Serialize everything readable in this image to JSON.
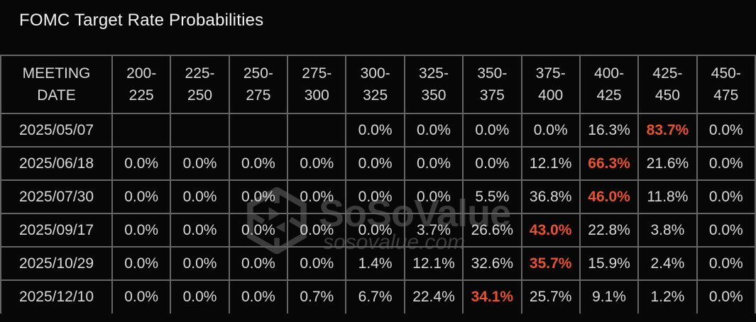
{
  "title": "FOMC Target Rate Probabilities",
  "colors": {
    "background": "#070707",
    "text": "#d9d9d9",
    "title": "#f2f2f2",
    "border": "#646464",
    "highlight": "#e8522f",
    "watermark": "#3b3b3b"
  },
  "watermark": {
    "brand": "SoSoValue",
    "site": "sosovalue.com",
    "logo": "sosovalue-cube-logo"
  },
  "table": {
    "date_header": "MEETING\nDATE",
    "rate_headers": [
      "200-\n225",
      "225-\n250",
      "250-\n275",
      "275-\n300",
      "300-\n325",
      "325-\n350",
      "350-\n375",
      "375-\n400",
      "400-\n425",
      "425-\n450",
      "450-\n475"
    ],
    "rows": [
      {
        "date": "2025/05/07",
        "values": [
          "",
          "",
          "",
          "",
          "0.0%",
          "0.0%",
          "0.0%",
          "0.0%",
          "16.3%",
          "83.7%",
          "0.0%"
        ],
        "highlight_col": 9
      },
      {
        "date": "2025/06/18",
        "values": [
          "0.0%",
          "0.0%",
          "0.0%",
          "0.0%",
          "0.0%",
          "0.0%",
          "0.0%",
          "12.1%",
          "66.3%",
          "21.6%",
          "0.0%"
        ],
        "highlight_col": 8
      },
      {
        "date": "2025/07/30",
        "values": [
          "0.0%",
          "0.0%",
          "0.0%",
          "0.0%",
          "0.0%",
          "0.0%",
          "5.5%",
          "36.8%",
          "46.0%",
          "11.8%",
          "0.0%"
        ],
        "highlight_col": 8
      },
      {
        "date": "2025/09/17",
        "values": [
          "0.0%",
          "0.0%",
          "0.0%",
          "0.0%",
          "0.0%",
          "3.7%",
          "26.6%",
          "43.0%",
          "22.8%",
          "3.8%",
          "0.0%"
        ],
        "highlight_col": 7
      },
      {
        "date": "2025/10/29",
        "values": [
          "0.0%",
          "0.0%",
          "0.0%",
          "0.0%",
          "1.4%",
          "12.1%",
          "32.6%",
          "35.7%",
          "15.9%",
          "2.4%",
          "0.0%"
        ],
        "highlight_col": 7
      },
      {
        "date": "2025/12/10",
        "values": [
          "0.0%",
          "0.0%",
          "0.0%",
          "0.7%",
          "6.7%",
          "22.4%",
          "34.1%",
          "25.7%",
          "9.1%",
          "1.2%",
          "0.0%"
        ],
        "highlight_col": 6
      }
    ]
  },
  "chart_data": {
    "type": "table",
    "title": "FOMC Target Rate Probabilities",
    "columns": [
      "MEETING DATE",
      "200-225",
      "225-250",
      "250-275",
      "275-300",
      "300-325",
      "325-350",
      "350-375",
      "375-400",
      "400-425",
      "425-450",
      "450-475"
    ],
    "unit": "percent",
    "rows": [
      [
        "2025/05/07",
        null,
        null,
        null,
        null,
        0.0,
        0.0,
        0.0,
        0.0,
        16.3,
        83.7,
        0.0
      ],
      [
        "2025/06/18",
        0.0,
        0.0,
        0.0,
        0.0,
        0.0,
        0.0,
        0.0,
        12.1,
        66.3,
        21.6,
        0.0
      ],
      [
        "2025/07/30",
        0.0,
        0.0,
        0.0,
        0.0,
        0.0,
        0.0,
        5.5,
        36.8,
        46.0,
        11.8,
        0.0
      ],
      [
        "2025/09/17",
        0.0,
        0.0,
        0.0,
        0.0,
        0.0,
        3.7,
        26.6,
        43.0,
        22.8,
        3.8,
        0.0
      ],
      [
        "2025/10/29",
        0.0,
        0.0,
        0.0,
        0.0,
        1.4,
        12.1,
        32.6,
        35.7,
        15.9,
        2.4,
        0.0
      ],
      [
        "2025/12/10",
        0.0,
        0.0,
        0.0,
        0.7,
        6.7,
        22.4,
        34.1,
        25.7,
        9.1,
        1.2,
        0.0
      ]
    ],
    "highlighted_max_per_row": [
      83.7,
      66.3,
      46.0,
      43.0,
      35.7,
      34.1
    ],
    "highlight_color": "#e8522f"
  }
}
